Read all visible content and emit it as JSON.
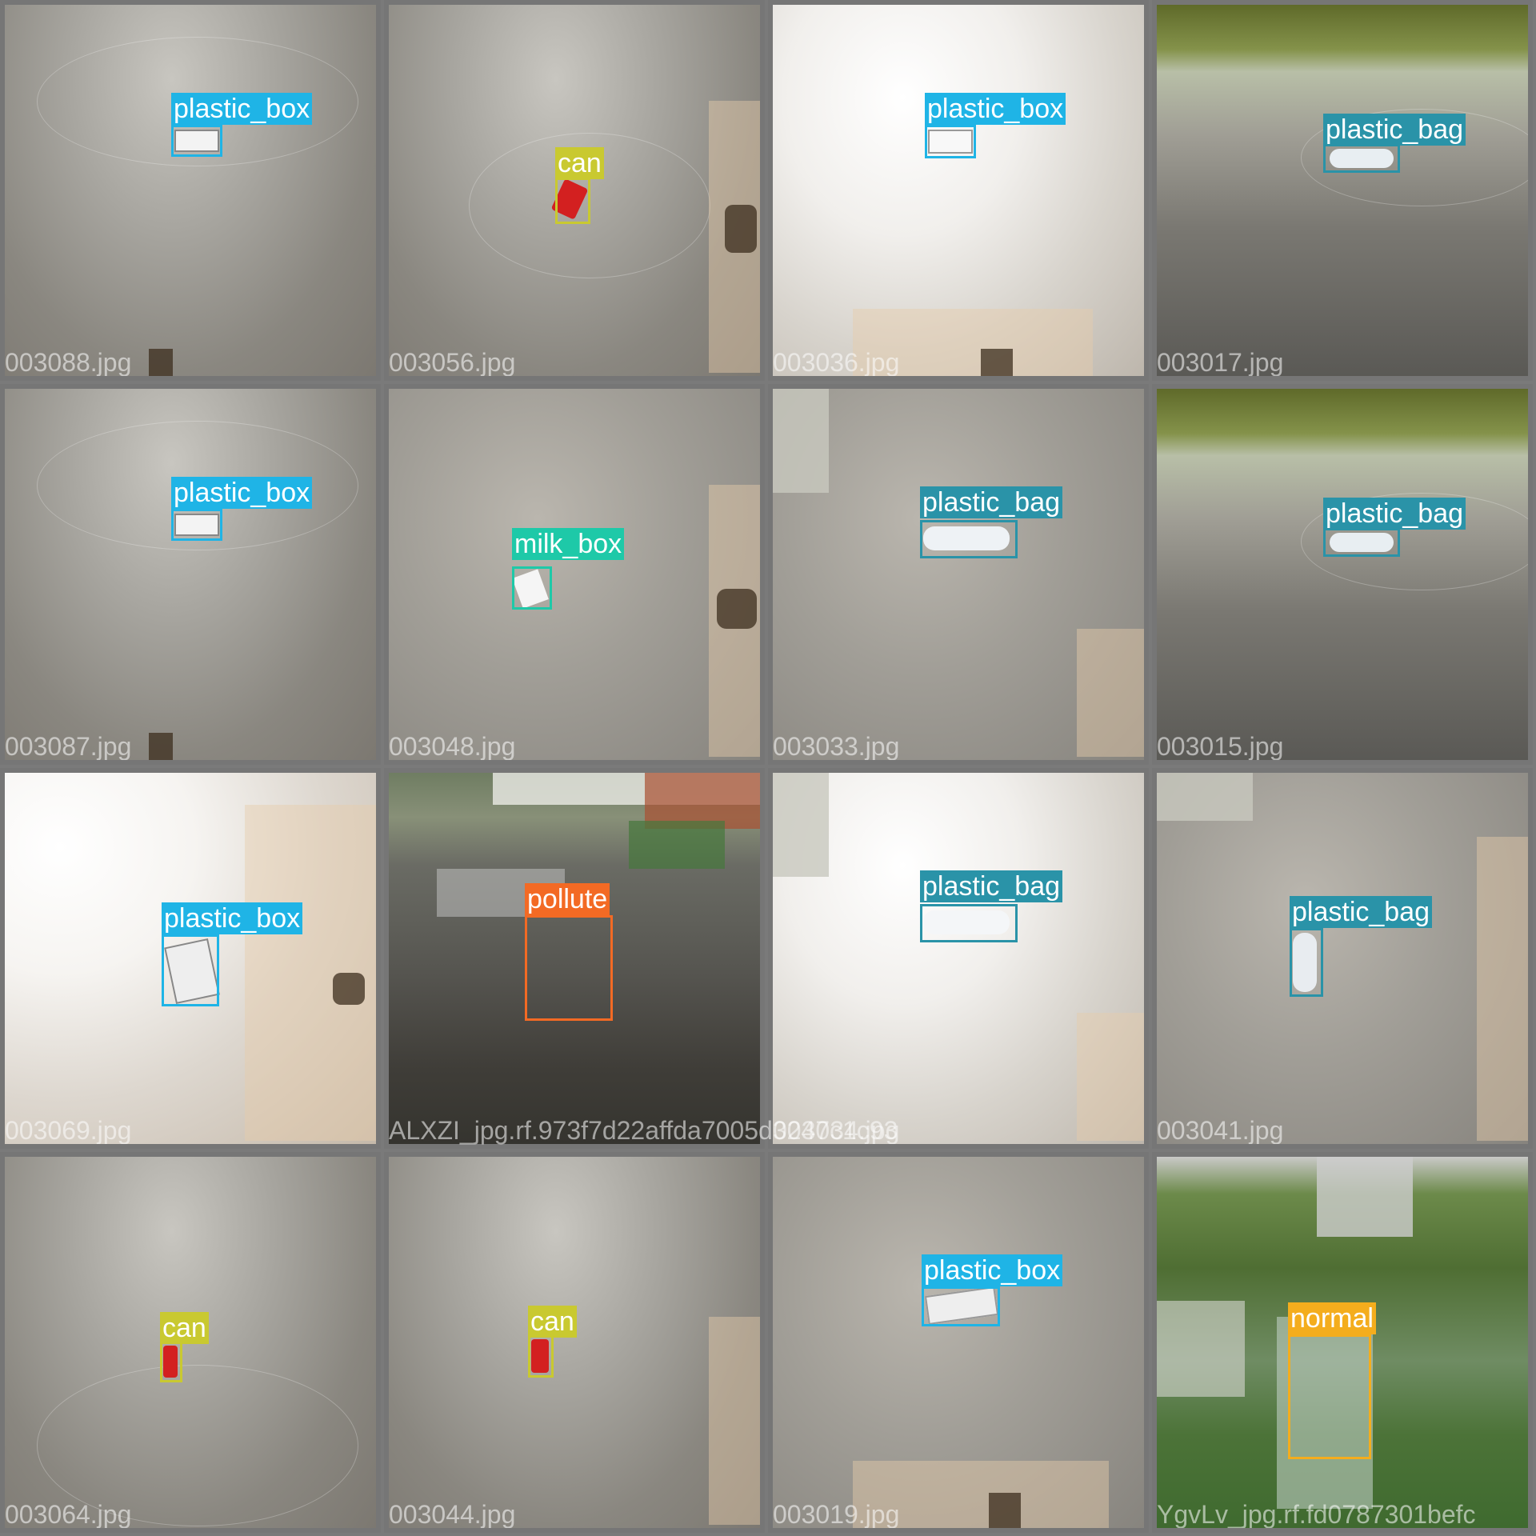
{
  "colors": {
    "plastic_box": "#1fb4e6",
    "can": "#c9c930",
    "plastic_bag": "#2a93a8",
    "milk_box": "#1ec9a8",
    "pollute": "#f36a24",
    "normal": "#f4ad1d"
  },
  "tiles": [
    {
      "filename": "003088.jpg",
      "label": "plastic_box"
    },
    {
      "filename": "003056.jpg",
      "label": "can"
    },
    {
      "filename": "003036.jpg",
      "label": "plastic_box"
    },
    {
      "filename": "003017.jpg",
      "label": "plastic_bag"
    },
    {
      "filename": "003087.jpg",
      "label": "plastic_box"
    },
    {
      "filename": "003048.jpg",
      "label": "milk_box"
    },
    {
      "filename": "003033.jpg",
      "label": "plastic_bag"
    },
    {
      "filename": "003015.jpg",
      "label": "plastic_bag"
    },
    {
      "filename": "003069.jpg",
      "label": "plastic_box"
    },
    {
      "filename": "ALXZI_jpg.rf.973f7d22affda7005d3247c1c93",
      "label": "pollute"
    },
    {
      "filename": "003034.jpg",
      "label": "plastic_bag"
    },
    {
      "filename": "003041.jpg",
      "label": "plastic_bag"
    },
    {
      "filename": "003064.jpg",
      "label": "can"
    },
    {
      "filename": "003044.jpg",
      "label": "can"
    },
    {
      "filename": "003019.jpg",
      "label": "plastic_box"
    },
    {
      "filename": "YgvLv_jpg.rf.fd0787301befc",
      "label": "normal"
    }
  ]
}
